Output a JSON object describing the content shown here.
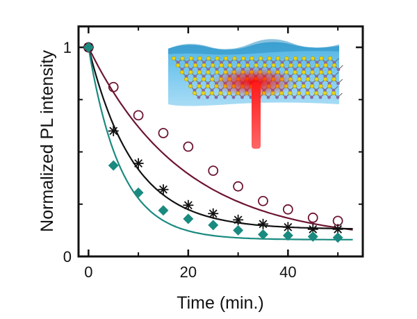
{
  "chart_data": {
    "type": "scatter",
    "xlabel": "Time (min.)",
    "ylabel": "Normalized PL intensity",
    "xlim": [
      -2,
      55
    ],
    "ylim": [
      0,
      1.1
    ],
    "x_ticks": [
      0,
      20,
      40
    ],
    "x_tick_labels": [
      "0",
      "20",
      "40"
    ],
    "y_tick_labels": [
      {
        "value": 0,
        "label": "0"
      },
      {
        "value": 1,
        "label": "1"
      }
    ],
    "grid": false,
    "legend": "none",
    "series": [
      {
        "marker": "open-circle",
        "color": "#6d1530",
        "x": [
          0,
          5,
          10,
          15,
          20,
          25,
          30,
          35,
          40,
          45,
          50
        ],
        "y": [
          1.0,
          0.81,
          0.675,
          0.59,
          0.525,
          0.41,
          0.335,
          0.265,
          0.225,
          0.185,
          0.17
        ],
        "fit": {
          "a": 0.93,
          "tau": 19,
          "c": 0.07
        }
      },
      {
        "marker": "asterisk",
        "color": "#111111",
        "x": [
          0,
          5,
          10,
          15,
          20,
          25,
          30,
          35,
          40,
          45,
          50
        ],
        "y": [
          1.0,
          0.6,
          0.445,
          0.32,
          0.245,
          0.205,
          0.175,
          0.155,
          0.14,
          0.13,
          0.13
        ],
        "fit": {
          "a": 0.87,
          "tau": 9,
          "c": 0.13
        }
      },
      {
        "marker": "diamond",
        "color": "#1a8a80",
        "x": [
          0,
          5,
          10,
          15,
          20,
          25,
          30,
          35,
          40,
          45,
          50
        ],
        "y": [
          1.0,
          0.435,
          0.305,
          0.22,
          0.18,
          0.15,
          0.125,
          0.105,
          0.1,
          0.095,
          0.09
        ],
        "fit": {
          "a": 0.92,
          "tau": 6.5,
          "c": 0.08
        }
      }
    ],
    "inset": "illustration of a layered crystal lattice submerged in water, with a red laser beam exciting the surface"
  }
}
